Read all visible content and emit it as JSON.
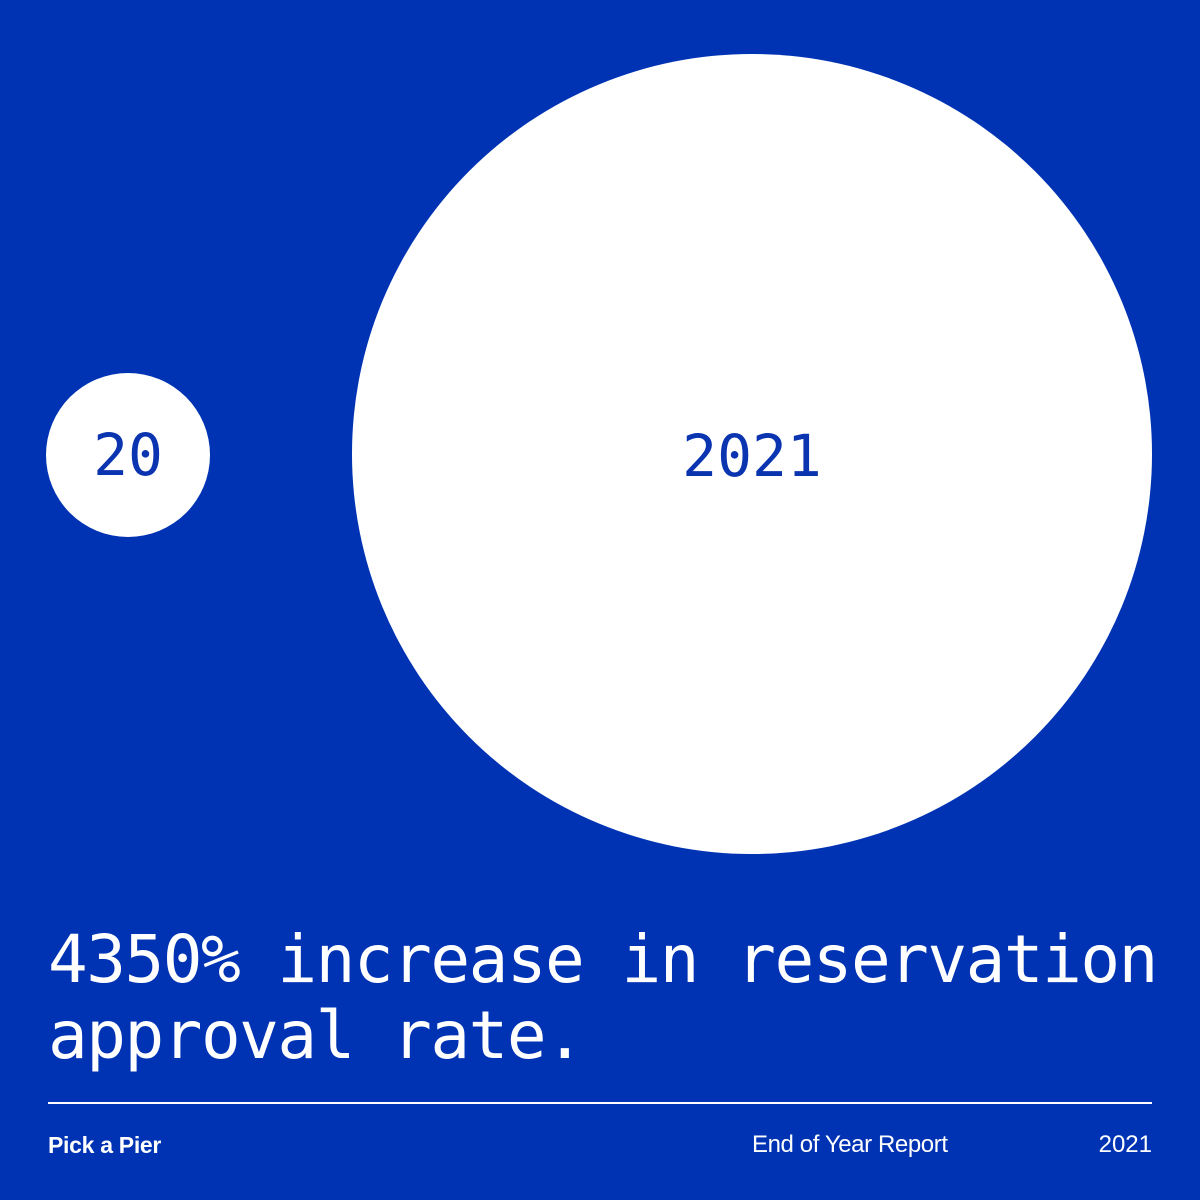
{
  "colors": {
    "background": "#0033b4",
    "bubble": "#ffffff",
    "bubble_text": "#0a34b0",
    "text": "#ffffff"
  },
  "bubbles": {
    "small_label": "20",
    "large_label": "2021"
  },
  "headline": "4350% increase in reservation approval rate.",
  "footer": {
    "brand": "Pick a Pier",
    "report": "End of Year Report",
    "year": "2021"
  }
}
